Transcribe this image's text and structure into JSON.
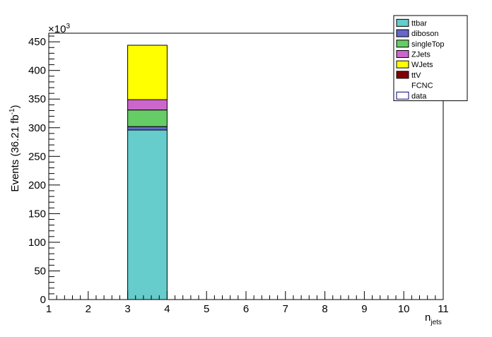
{
  "chart_data": {
    "type": "bar",
    "stacked": true,
    "title": "",
    "xlabel": "n",
    "xlabel_sub": "jets",
    "ylabel": "Events (36.21 fb",
    "ylabel_sup": "-1",
    "ylabel_close": ")",
    "y_multiplier": "×10",
    "y_multiplier_exp": "3",
    "xlim": [
      1,
      11
    ],
    "ylim": [
      0,
      465
    ],
    "x_ticks": [
      "1",
      "2",
      "3",
      "4",
      "5",
      "6",
      "7",
      "8",
      "9",
      "10",
      "11"
    ],
    "y_ticks": [
      "0",
      "50",
      "100",
      "150",
      "200",
      "250",
      "300",
      "350",
      "400",
      "450"
    ],
    "bins": [
      {
        "low": 3,
        "high": 4
      }
    ],
    "series": [
      {
        "name": "ttbar",
        "color": "#66cccc",
        "values": [
          296
        ]
      },
      {
        "name": "diboson",
        "color": "#6666cc",
        "values": [
          6
        ]
      },
      {
        "name": "singleTop",
        "color": "#66cc66",
        "values": [
          29
        ]
      },
      {
        "name": "ZJets",
        "color": "#cc66cc",
        "values": [
          18
        ]
      },
      {
        "name": "WJets",
        "color": "#ffff00",
        "values": [
          95
        ]
      },
      {
        "name": "ttV",
        "color": "#800000",
        "values": [
          0
        ]
      }
    ],
    "legend": [
      {
        "name": "ttbar",
        "marker": "fill",
        "color": "#66cccc"
      },
      {
        "name": "diboson",
        "marker": "fill",
        "color": "#6666cc"
      },
      {
        "name": "singleTop",
        "marker": "fill",
        "color": "#66cc66"
      },
      {
        "name": "ZJets",
        "marker": "fill",
        "color": "#cc66cc"
      },
      {
        "name": "WJets",
        "marker": "fill",
        "color": "#ffff00"
      },
      {
        "name": "ttV",
        "marker": "fill",
        "color": "#800000"
      },
      {
        "name": "FCNC",
        "marker": "none",
        "color": "#ffffff"
      },
      {
        "name": "data",
        "marker": "outline",
        "color": "#000080"
      }
    ],
    "legend_position": "top-right",
    "grid": false
  }
}
